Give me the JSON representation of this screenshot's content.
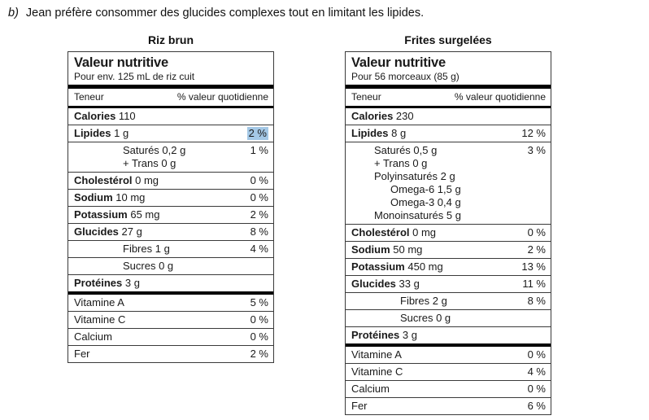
{
  "question": {
    "label": "b)",
    "text": "Jean préfère consommer des glucides complexes tout en limitant les lipides."
  },
  "highlight_color": "#a4c8e6",
  "labels": [
    {
      "title": "Riz brun",
      "header": "Valeur nutritive",
      "serving": "Pour env. 125 mL de riz cuit",
      "col_left": "Teneur",
      "col_right": "% valeur quotidienne",
      "rows": [
        {
          "sep": "thin",
          "lines": [
            {
              "bold": "Calories",
              "text": "110"
            }
          ]
        },
        {
          "sep": "thin",
          "lines": [
            {
              "bold": "Lipides",
              "text": "1 g",
              "dv": "2 %",
              "hl": true
            }
          ]
        },
        {
          "sep": "thin",
          "lines": [
            {
              "text": "Saturés 0,2 g",
              "dv": "1 %",
              "indent": 3
            },
            {
              "text": "+ Trans 0 g",
              "indent": 3
            }
          ]
        },
        {
          "sep": "thin",
          "lines": [
            {
              "bold": "Cholestérol",
              "text": "0 mg",
              "dv": "0 %"
            }
          ]
        },
        {
          "sep": "thin",
          "lines": [
            {
              "bold": "Sodium",
              "text": "10 mg",
              "dv": "0 %"
            }
          ]
        },
        {
          "sep": "thin",
          "lines": [
            {
              "bold": "Potassium",
              "text": "65 mg",
              "dv": "2 %"
            }
          ]
        },
        {
          "sep": "thin",
          "lines": [
            {
              "bold": "Glucides",
              "text": "27 g",
              "dv": "8 %"
            }
          ]
        },
        {
          "sep": "thin",
          "lines": [
            {
              "text": "Fibres 1 g",
              "dv": "4 %",
              "indent": 3
            }
          ]
        },
        {
          "sep": "thin",
          "lines": [
            {
              "text": "Sucres 0 g",
              "indent": 3
            }
          ]
        },
        {
          "sep": "thick",
          "lines": [
            {
              "bold": "Protéines",
              "text": "3 g"
            }
          ]
        },
        {
          "sep": "thin",
          "lines": [
            {
              "text": "Vitamine A",
              "dv": "5 %"
            }
          ]
        },
        {
          "sep": "thin",
          "lines": [
            {
              "text": "Vitamine C",
              "dv": "0 %"
            }
          ]
        },
        {
          "sep": "thin",
          "lines": [
            {
              "text": "Calcium",
              "dv": "0 %"
            }
          ]
        },
        {
          "sep": "none",
          "lines": [
            {
              "text": "Fer",
              "dv": "2 %"
            }
          ]
        }
      ]
    },
    {
      "title": "Frites surgelées",
      "header": "Valeur nutritive",
      "serving": "Pour 56 morceaux (85 g)",
      "col_left": "Teneur",
      "col_right": "% valeur quotidienne",
      "rows": [
        {
          "sep": "thin",
          "lines": [
            {
              "bold": "Calories",
              "text": "230"
            }
          ]
        },
        {
          "sep": "thin",
          "lines": [
            {
              "bold": "Lipides",
              "text": "8 g",
              "dv": "12 %"
            }
          ]
        },
        {
          "sep": "thin",
          "lines": [
            {
              "text": "Saturés 0,5 g",
              "dv": "3 %",
              "indent": 1
            },
            {
              "text": "+ Trans 0 g",
              "indent": 1
            },
            {
              "text": "Polyinsaturés 2 g",
              "indent": 1
            },
            {
              "text": "Omega-6 1,5 g",
              "indent": 2
            },
            {
              "text": "Omega-3 0,4 g",
              "indent": 2
            },
            {
              "text": "Monoinsaturés 5 g",
              "indent": 1
            }
          ]
        },
        {
          "sep": "thin",
          "lines": [
            {
              "bold": "Cholestérol",
              "text": "0 mg",
              "dv": "0 %"
            }
          ]
        },
        {
          "sep": "thin",
          "lines": [
            {
              "bold": "Sodium",
              "text": "50 mg",
              "dv": "2 %"
            }
          ]
        },
        {
          "sep": "thin",
          "lines": [
            {
              "bold": "Potassium",
              "text": "450 mg",
              "dv": "13 %"
            }
          ]
        },
        {
          "sep": "thin",
          "lines": [
            {
              "bold": "Glucides",
              "text": "33 g",
              "dv": "11 %"
            }
          ]
        },
        {
          "sep": "thin",
          "lines": [
            {
              "text": "Fibres 2 g",
              "dv": "8 %",
              "indent": 3
            }
          ]
        },
        {
          "sep": "thin",
          "lines": [
            {
              "text": "Sucres 0 g",
              "indent": 3
            }
          ]
        },
        {
          "sep": "thick",
          "lines": [
            {
              "bold": "Protéines",
              "text": "3 g"
            }
          ]
        },
        {
          "sep": "thin",
          "lines": [
            {
              "text": "Vitamine A",
              "dv": "0 %"
            }
          ]
        },
        {
          "sep": "thin",
          "lines": [
            {
              "text": "Vitamine C",
              "dv": "4 %"
            }
          ]
        },
        {
          "sep": "thin",
          "lines": [
            {
              "text": "Calcium",
              "dv": "0 %"
            }
          ]
        },
        {
          "sep": "none",
          "lines": [
            {
              "text": "Fer",
              "dv": "6 %"
            }
          ]
        }
      ]
    }
  ]
}
